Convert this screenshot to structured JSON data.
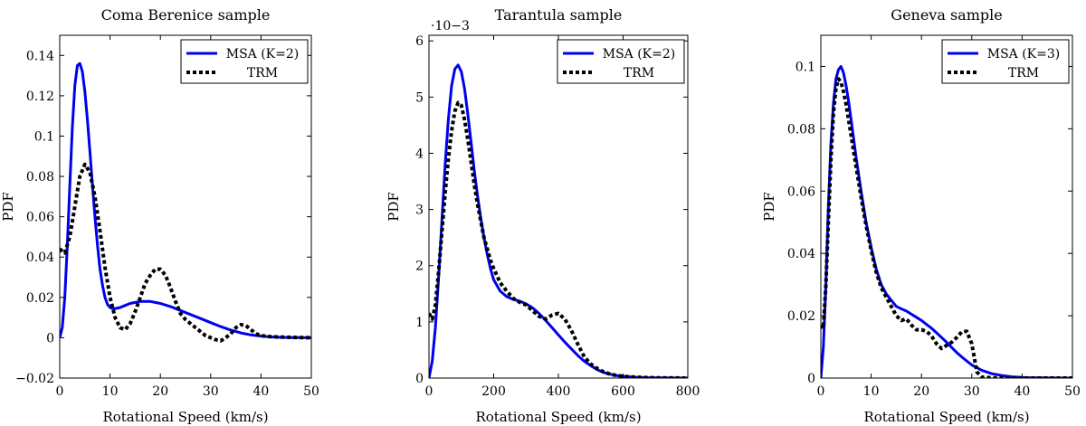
{
  "chart_data": [
    {
      "type": "line",
      "title": "Coma Berenice sample",
      "xlabel": "Rotational Speed (km/s)",
      "ylabel": "PDF",
      "xlim": [
        0,
        50
      ],
      "ylim": [
        -0.02,
        0.15
      ],
      "xticks": [
        0,
        10,
        20,
        30,
        40,
        50
      ],
      "xtick_labels": [
        "0",
        "10",
        "20",
        "30",
        "40",
        "50"
      ],
      "yticks": [
        -0.02,
        0,
        0.02,
        0.04,
        0.06,
        0.08,
        0.1,
        0.12,
        0.14
      ],
      "ytick_labels": [
        "−0.02",
        "0",
        "0.02",
        "0.04",
        "0.06",
        "0.08",
        "0.1",
        "0.12",
        "0.14"
      ],
      "exponent_label": "",
      "legend_position": "top-right",
      "series": [
        {
          "name": "MSA (K=2)",
          "style": "solid",
          "color": "#0000ee",
          "x": [
            0,
            0.5,
            1,
            1.5,
            2,
            2.5,
            3,
            3.5,
            4,
            4.5,
            5,
            5.5,
            6,
            6.5,
            7,
            7.5,
            8,
            8.5,
            9,
            9.5,
            10,
            10.5,
            11,
            12,
            13,
            14,
            15,
            16,
            17,
            18,
            19,
            20,
            22,
            24,
            26,
            28,
            30,
            32,
            34,
            36,
            38,
            40,
            42,
            44,
            46,
            48,
            50
          ],
          "y": [
            0,
            0.005,
            0.02,
            0.045,
            0.075,
            0.104,
            0.125,
            0.135,
            0.136,
            0.132,
            0.122,
            0.108,
            0.092,
            0.076,
            0.06,
            0.046,
            0.034,
            0.026,
            0.02,
            0.0165,
            0.015,
            0.0145,
            0.0145,
            0.015,
            0.016,
            0.017,
            0.0175,
            0.018,
            0.018,
            0.018,
            0.0175,
            0.017,
            0.0155,
            0.0135,
            0.0115,
            0.0095,
            0.0075,
            0.0055,
            0.0038,
            0.0024,
            0.0014,
            0.0008,
            0.0004,
            0.0002,
            0.0001,
            5e-05,
            0
          ]
        },
        {
          "name": "TRM",
          "style": "dashed",
          "color": "#000000",
          "x": [
            0,
            1,
            2,
            3,
            4,
            5,
            6,
            7,
            8,
            9,
            10,
            11,
            12,
            13,
            14,
            15,
            16,
            17,
            18,
            19,
            20,
            21,
            22,
            23,
            24,
            25,
            26,
            27,
            28,
            29,
            30,
            31,
            32,
            33,
            34,
            35,
            36,
            37,
            38,
            39,
            40,
            42,
            44,
            46,
            48,
            50
          ],
          "y": [
            0.044,
            0.042,
            0.05,
            0.065,
            0.08,
            0.086,
            0.082,
            0.07,
            0.053,
            0.035,
            0.02,
            0.01,
            0.005,
            0.004,
            0.007,
            0.013,
            0.02,
            0.027,
            0.031,
            0.034,
            0.034,
            0.031,
            0.025,
            0.018,
            0.012,
            0.009,
            0.007,
            0.005,
            0.003,
            0.001,
            0,
            -0.001,
            -0.0015,
            0,
            0.002,
            0.005,
            0.0065,
            0.006,
            0.004,
            0.002,
            0.001,
            0.0005,
            0.0003,
            0.0002,
            0.0001,
            0
          ]
        }
      ]
    },
    {
      "type": "line",
      "title": "Tarantula sample",
      "xlabel": "Rotational Speed (km/s)",
      "ylabel": "PDF",
      "xlim": [
        0,
        800
      ],
      "ylim": [
        0,
        6.1
      ],
      "xticks": [
        0,
        200,
        400,
        600,
        800
      ],
      "xtick_labels": [
        "0",
        "200",
        "400",
        "600",
        "800"
      ],
      "yticks": [
        0,
        1,
        2,
        3,
        4,
        5,
        6
      ],
      "ytick_labels": [
        "0",
        "1",
        "2",
        "3",
        "4",
        "5",
        "6"
      ],
      "exponent_label": "·10−3",
      "legend_position": "top-right",
      "series": [
        {
          "name": "MSA (K=2)",
          "style": "solid",
          "color": "#0000ee",
          "x": [
            0,
            10,
            20,
            30,
            40,
            50,
            60,
            70,
            80,
            90,
            100,
            110,
            120,
            130,
            140,
            150,
            160,
            170,
            180,
            190,
            200,
            220,
            240,
            260,
            280,
            300,
            320,
            340,
            360,
            380,
            400,
            420,
            440,
            460,
            480,
            500,
            520,
            540,
            560,
            580,
            600,
            640,
            680,
            720,
            760,
            800
          ],
          "y": [
            0,
            0.3,
            0.9,
            1.8,
            2.8,
            3.8,
            4.6,
            5.2,
            5.5,
            5.57,
            5.45,
            5.15,
            4.7,
            4.2,
            3.7,
            3.25,
            2.85,
            2.5,
            2.2,
            1.95,
            1.75,
            1.55,
            1.45,
            1.4,
            1.37,
            1.32,
            1.25,
            1.15,
            1.03,
            0.9,
            0.77,
            0.64,
            0.52,
            0.4,
            0.3,
            0.22,
            0.15,
            0.1,
            0.07,
            0.045,
            0.03,
            0.015,
            0.007,
            0.003,
            0.001,
            0
          ]
        },
        {
          "name": "TRM",
          "style": "dashed",
          "color": "#000000",
          "x": [
            0,
            10,
            20,
            30,
            40,
            50,
            60,
            70,
            80,
            90,
            100,
            110,
            120,
            130,
            140,
            150,
            160,
            170,
            180,
            190,
            200,
            220,
            240,
            260,
            280,
            300,
            320,
            340,
            360,
            380,
            400,
            420,
            440,
            460,
            480,
            500,
            520,
            540,
            560,
            580,
            600,
            640,
            680,
            720,
            760,
            800
          ],
          "y": [
            1.15,
            1.05,
            1.3,
            1.9,
            2.6,
            3.3,
            3.9,
            4.4,
            4.75,
            4.9,
            4.85,
            4.6,
            4.25,
            3.85,
            3.45,
            3.1,
            2.8,
            2.5,
            2.3,
            2.1,
            1.95,
            1.7,
            1.55,
            1.42,
            1.35,
            1.3,
            1.2,
            1.1,
            1.05,
            1.12,
            1.15,
            1.05,
            0.85,
            0.6,
            0.38,
            0.25,
            0.17,
            0.11,
            0.07,
            0.045,
            0.03,
            0.015,
            0.007,
            0.003,
            0.001,
            0
          ]
        }
      ]
    },
    {
      "type": "line",
      "title": "Geneva sample",
      "xlabel": "Rotational Speed (km/s)",
      "ylabel": "PDF",
      "xlim": [
        0,
        50
      ],
      "ylim": [
        0,
        0.11
      ],
      "xticks": [
        0,
        10,
        20,
        30,
        40,
        50
      ],
      "xtick_labels": [
        "0",
        "10",
        "20",
        "30",
        "40",
        "50"
      ],
      "yticks": [
        0,
        0.02,
        0.04,
        0.06,
        0.08,
        0.1
      ],
      "ytick_labels": [
        "0",
        "0.02",
        "0.04",
        "0.06",
        "0.08",
        "0.1"
      ],
      "exponent_label": "",
      "legend_position": "top-right",
      "series": [
        {
          "name": "MSA (K=3)",
          "style": "solid",
          "color": "#0000ee",
          "x": [
            0,
            0.5,
            1,
            1.5,
            2,
            2.5,
            3,
            3.5,
            4,
            4.5,
            5,
            5.5,
            6,
            7,
            8,
            9,
            10,
            11,
            12,
            13,
            14,
            15,
            16,
            17,
            18,
            19,
            20,
            21,
            22,
            23,
            24,
            25,
            26,
            27,
            28,
            29,
            30,
            32,
            34,
            36,
            38,
            40,
            42,
            44,
            46,
            48,
            50
          ],
          "y": [
            0,
            0.01,
            0.03,
            0.055,
            0.075,
            0.088,
            0.096,
            0.099,
            0.1,
            0.098,
            0.094,
            0.089,
            0.083,
            0.071,
            0.06,
            0.05,
            0.042,
            0.035,
            0.03,
            0.027,
            0.025,
            0.023,
            0.0222,
            0.0215,
            0.0205,
            0.0195,
            0.0185,
            0.0172,
            0.016,
            0.0145,
            0.013,
            0.0115,
            0.0098,
            0.0082,
            0.0068,
            0.0055,
            0.0042,
            0.0025,
            0.0014,
            0.0008,
            0.0004,
            0.0002,
            0.0001,
            5e-05,
            2e-05,
            1e-05,
            0
          ]
        },
        {
          "name": "TRM",
          "style": "dashed",
          "color": "#000000",
          "x": [
            0,
            0.5,
            1,
            1.5,
            2,
            2.5,
            3,
            3.5,
            4,
            4.5,
            5,
            5.5,
            6,
            7,
            8,
            9,
            10,
            11,
            12,
            13,
            14,
            15,
            16,
            17,
            18,
            19,
            20,
            21,
            22,
            23,
            24,
            25,
            26,
            27,
            28,
            29,
            30,
            31,
            32,
            34,
            36,
            38,
            40,
            42,
            44,
            46,
            48,
            50
          ],
          "y": [
            0.017,
            0.016,
            0.03,
            0.05,
            0.07,
            0.085,
            0.093,
            0.096,
            0.095,
            0.092,
            0.088,
            0.083,
            0.078,
            0.068,
            0.058,
            0.049,
            0.041,
            0.034,
            0.029,
            0.026,
            0.023,
            0.02,
            0.0185,
            0.019,
            0.017,
            0.0155,
            0.0155,
            0.015,
            0.0135,
            0.011,
            0.0095,
            0.0105,
            0.0115,
            0.013,
            0.0148,
            0.015,
            0.011,
            0.002,
            0.0003,
            0.0001,
            0,
            0,
            0,
            0,
            0,
            0,
            0,
            0
          ]
        }
      ]
    }
  ]
}
